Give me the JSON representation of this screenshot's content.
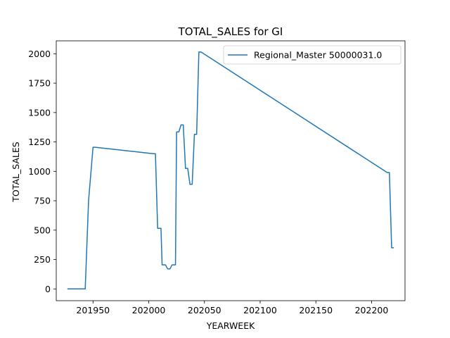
{
  "chart_data": {
    "type": "line",
    "title": "TOTAL_SALES for GI",
    "xlabel": "YEARWEEK",
    "ylabel": "TOTAL_SALES",
    "xlim": [
      201917,
      202230
    ],
    "ylim": [
      -100,
      2110
    ],
    "xticks": [
      201950,
      202000,
      202050,
      202100,
      202150,
      202200
    ],
    "yticks": [
      0,
      250,
      500,
      750,
      1000,
      1250,
      1500,
      1750,
      2000
    ],
    "grid": false,
    "legend_position": "top-right",
    "series": [
      {
        "name": "Regional_Master 50000031.0",
        "color": "#1f77b4",
        "x": [
          201927,
          201943,
          201946,
          201950,
          201952,
          202004,
          202006,
          202008,
          202009,
          202011,
          202012,
          202014,
          202015,
          202017,
          202019,
          202021,
          202022,
          202024,
          202025,
          202027,
          202029,
          202031,
          202033,
          202035,
          202037,
          202039,
          202041,
          202043,
          202045,
          202047,
          202214,
          202216,
          202218,
          202220
        ],
        "y": [
          0,
          0,
          750,
          1205,
          1205,
          1150,
          1150,
          515,
          515,
          515,
          205,
          205,
          205,
          170,
          170,
          205,
          205,
          205,
          1335,
          1335,
          1395,
          1395,
          1025,
          1025,
          890,
          890,
          1315,
          1315,
          2015,
          2015,
          990,
          990,
          350,
          350
        ]
      }
    ]
  }
}
